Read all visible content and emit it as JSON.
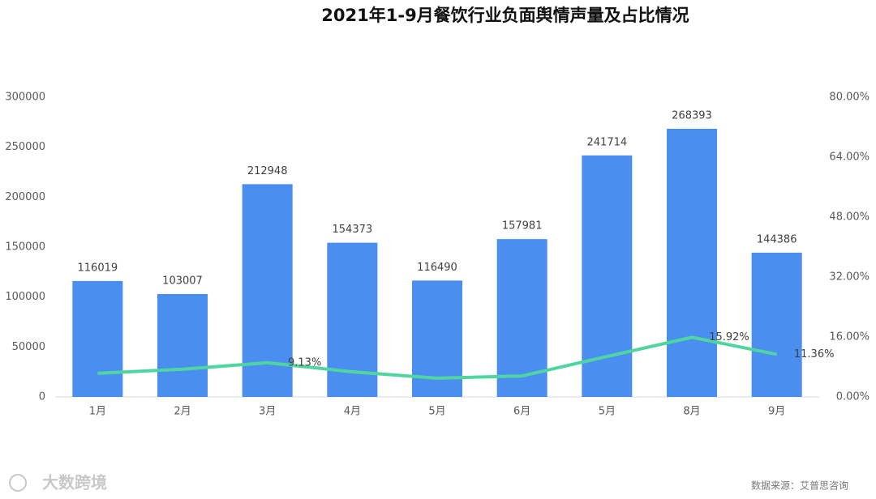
{
  "chart_data": {
    "type": "bar-line",
    "title": "2021年1-9月餐饮行业负面舆情声量及占比情况",
    "categories": [
      "1月",
      "2月",
      "3月",
      "4月",
      "5月",
      "6月",
      "5月",
      "8月",
      "9月"
    ],
    "series": [
      {
        "type": "bar",
        "color": "#4a8ef0",
        "values": [
          116019,
          103007,
          212948,
          154373,
          116490,
          157981,
          241714,
          268393,
          144386
        ]
      },
      {
        "type": "line",
        "axis": "y2",
        "color": "#4fd6a0",
        "values": [
          6.3,
          7.4,
          9.13,
          6.7,
          5.0,
          5.6,
          10.8,
          15.92,
          11.36
        ],
        "value_labels": [
          null,
          null,
          "9.13%",
          null,
          null,
          null,
          null,
          "15.92%",
          "11.36%"
        ]
      }
    ],
    "ylim": [
      0,
      300000
    ],
    "yticks": [
      0,
      50000,
      100000,
      150000,
      200000,
      250000,
      300000
    ],
    "y2lim": [
      0,
      80
    ],
    "y2ticks": [
      {
        "value": 0,
        "label": "0.00%"
      },
      {
        "value": 16,
        "label": "16.00%"
      },
      {
        "value": 32,
        "label": "32.00%"
      },
      {
        "value": 48,
        "label": "48.00%"
      },
      {
        "value": 64,
        "label": "64.00%"
      },
      {
        "value": 80,
        "label": "80.00%"
      }
    ],
    "source": "数据来源：艾普思咨询",
    "brand": "大数跨境"
  }
}
